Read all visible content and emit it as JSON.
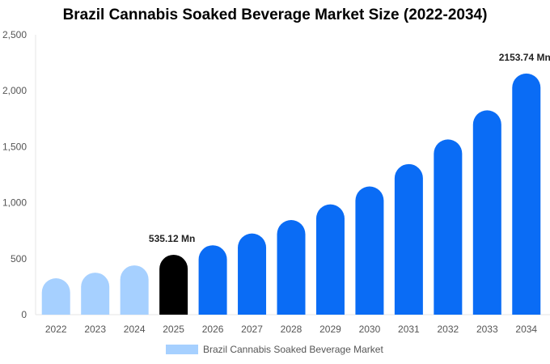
{
  "chart_data": {
    "type": "bar",
    "title": "Brazil Cannabis Soaked Beverage Market Size (2022-2034)",
    "categories": [
      "2022",
      "2023",
      "2024",
      "2025",
      "2026",
      "2027",
      "2028",
      "2029",
      "2030",
      "2031",
      "2032",
      "2033",
      "2034"
    ],
    "series": [
      {
        "name": "Brazil Cannabis Soaked Beverage Market",
        "values": [
          325,
          375,
          440,
          535.12,
          620,
          725,
          845,
          985,
          1145,
          1345,
          1565,
          1825,
          2153.74
        ]
      }
    ],
    "bar_colors": {
      "historical": "#a6d0ff",
      "base_year": "#000000",
      "forecast": "#0a6cf5"
    },
    "historical_years": [
      "2022",
      "2023",
      "2024"
    ],
    "base_year": "2025",
    "data_labels": [
      {
        "category": "2025",
        "text": "535.12 Mn"
      },
      {
        "category": "2034",
        "text": "2153.74 Mn"
      }
    ],
    "y_ticks": [
      "0",
      "500",
      "1,000",
      "1,500",
      "2,000",
      "2,500"
    ],
    "ylim": [
      0,
      2500
    ],
    "grid": false,
    "legend_position": "bottom"
  }
}
